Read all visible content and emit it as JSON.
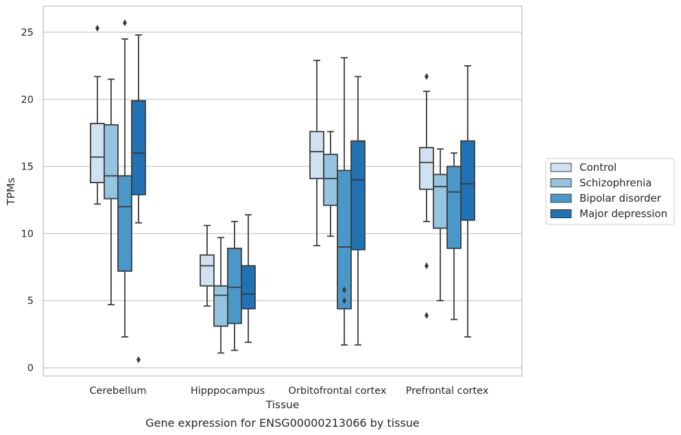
{
  "caption": "Gene expression for ENSG00000213066 by tissue",
  "chart_data": {
    "type": "boxplot",
    "title": "",
    "xlabel": "Tissue",
    "ylabel": "TPMs",
    "ylim": [
      -0.5,
      26.5
    ],
    "yticks": [
      0,
      5,
      10,
      15,
      20,
      25
    ],
    "grid": true,
    "legend_position": "right",
    "categories": [
      "Cerebellum",
      "Hipppocampus",
      "Orbitofrontal cortex",
      "Prefrontal cortex"
    ],
    "series": [
      {
        "name": "Control",
        "color": "#d0e1f2",
        "boxes": [
          {
            "whislo": 12.2,
            "q1": 13.8,
            "med": 15.7,
            "q3": 18.2,
            "whishi": 21.7,
            "fliers": [
              25.3
            ]
          },
          {
            "whislo": 4.6,
            "q1": 6.1,
            "med": 7.6,
            "q3": 8.4,
            "whishi": 10.6,
            "fliers": []
          },
          {
            "whislo": 9.1,
            "q1": 14.1,
            "med": 16.1,
            "q3": 17.6,
            "whishi": 22.9,
            "fliers": []
          },
          {
            "whislo": 10.9,
            "q1": 13.3,
            "med": 15.3,
            "q3": 16.4,
            "whishi": 20.6,
            "fliers": [
              21.7,
              7.6,
              3.9
            ]
          }
        ]
      },
      {
        "name": "Schizophrenia",
        "color": "#94c4df",
        "boxes": [
          {
            "whislo": 4.7,
            "q1": 12.6,
            "med": 14.3,
            "q3": 18.1,
            "whishi": 21.5,
            "fliers": []
          },
          {
            "whislo": 1.1,
            "q1": 3.1,
            "med": 5.4,
            "q3": 6.1,
            "whishi": 9.7,
            "fliers": []
          },
          {
            "whislo": 9.8,
            "q1": 12.1,
            "med": 14.1,
            "q3": 15.9,
            "whishi": 17.6,
            "fliers": []
          },
          {
            "whislo": 5.0,
            "q1": 10.4,
            "med": 13.5,
            "q3": 14.4,
            "whishi": 16.3,
            "fliers": []
          }
        ]
      },
      {
        "name": "Bipolar disorder",
        "color": "#4a98c9",
        "boxes": [
          {
            "whislo": 2.3,
            "q1": 7.2,
            "med": 12.0,
            "q3": 14.3,
            "whishi": 24.5,
            "fliers": [
              25.7
            ]
          },
          {
            "whislo": 1.3,
            "q1": 3.3,
            "med": 6.0,
            "q3": 8.9,
            "whishi": 10.9,
            "fliers": []
          },
          {
            "whislo": 1.7,
            "q1": 4.4,
            "med": 9.0,
            "q3": 14.7,
            "whishi": 23.1,
            "fliers": [
              5.8,
              5.0
            ]
          },
          {
            "whislo": 3.6,
            "q1": 8.9,
            "med": 13.1,
            "q3": 15.0,
            "whishi": 16.0,
            "fliers": []
          }
        ]
      },
      {
        "name": "Major depression",
        "color": "#2171b5",
        "boxes": [
          {
            "whislo": 10.8,
            "q1": 12.9,
            "med": 16.0,
            "q3": 19.9,
            "whishi": 24.8,
            "fliers": [
              0.6
            ]
          },
          {
            "whislo": 1.9,
            "q1": 4.4,
            "med": 5.5,
            "q3": 7.6,
            "whishi": 11.4,
            "fliers": []
          },
          {
            "whislo": 1.7,
            "q1": 8.8,
            "med": 14.0,
            "q3": 16.9,
            "whishi": 21.7,
            "fliers": []
          },
          {
            "whislo": 2.3,
            "q1": 11.0,
            "med": 13.7,
            "q3": 16.9,
            "whishi": 22.5,
            "fliers": []
          }
        ]
      }
    ]
  }
}
